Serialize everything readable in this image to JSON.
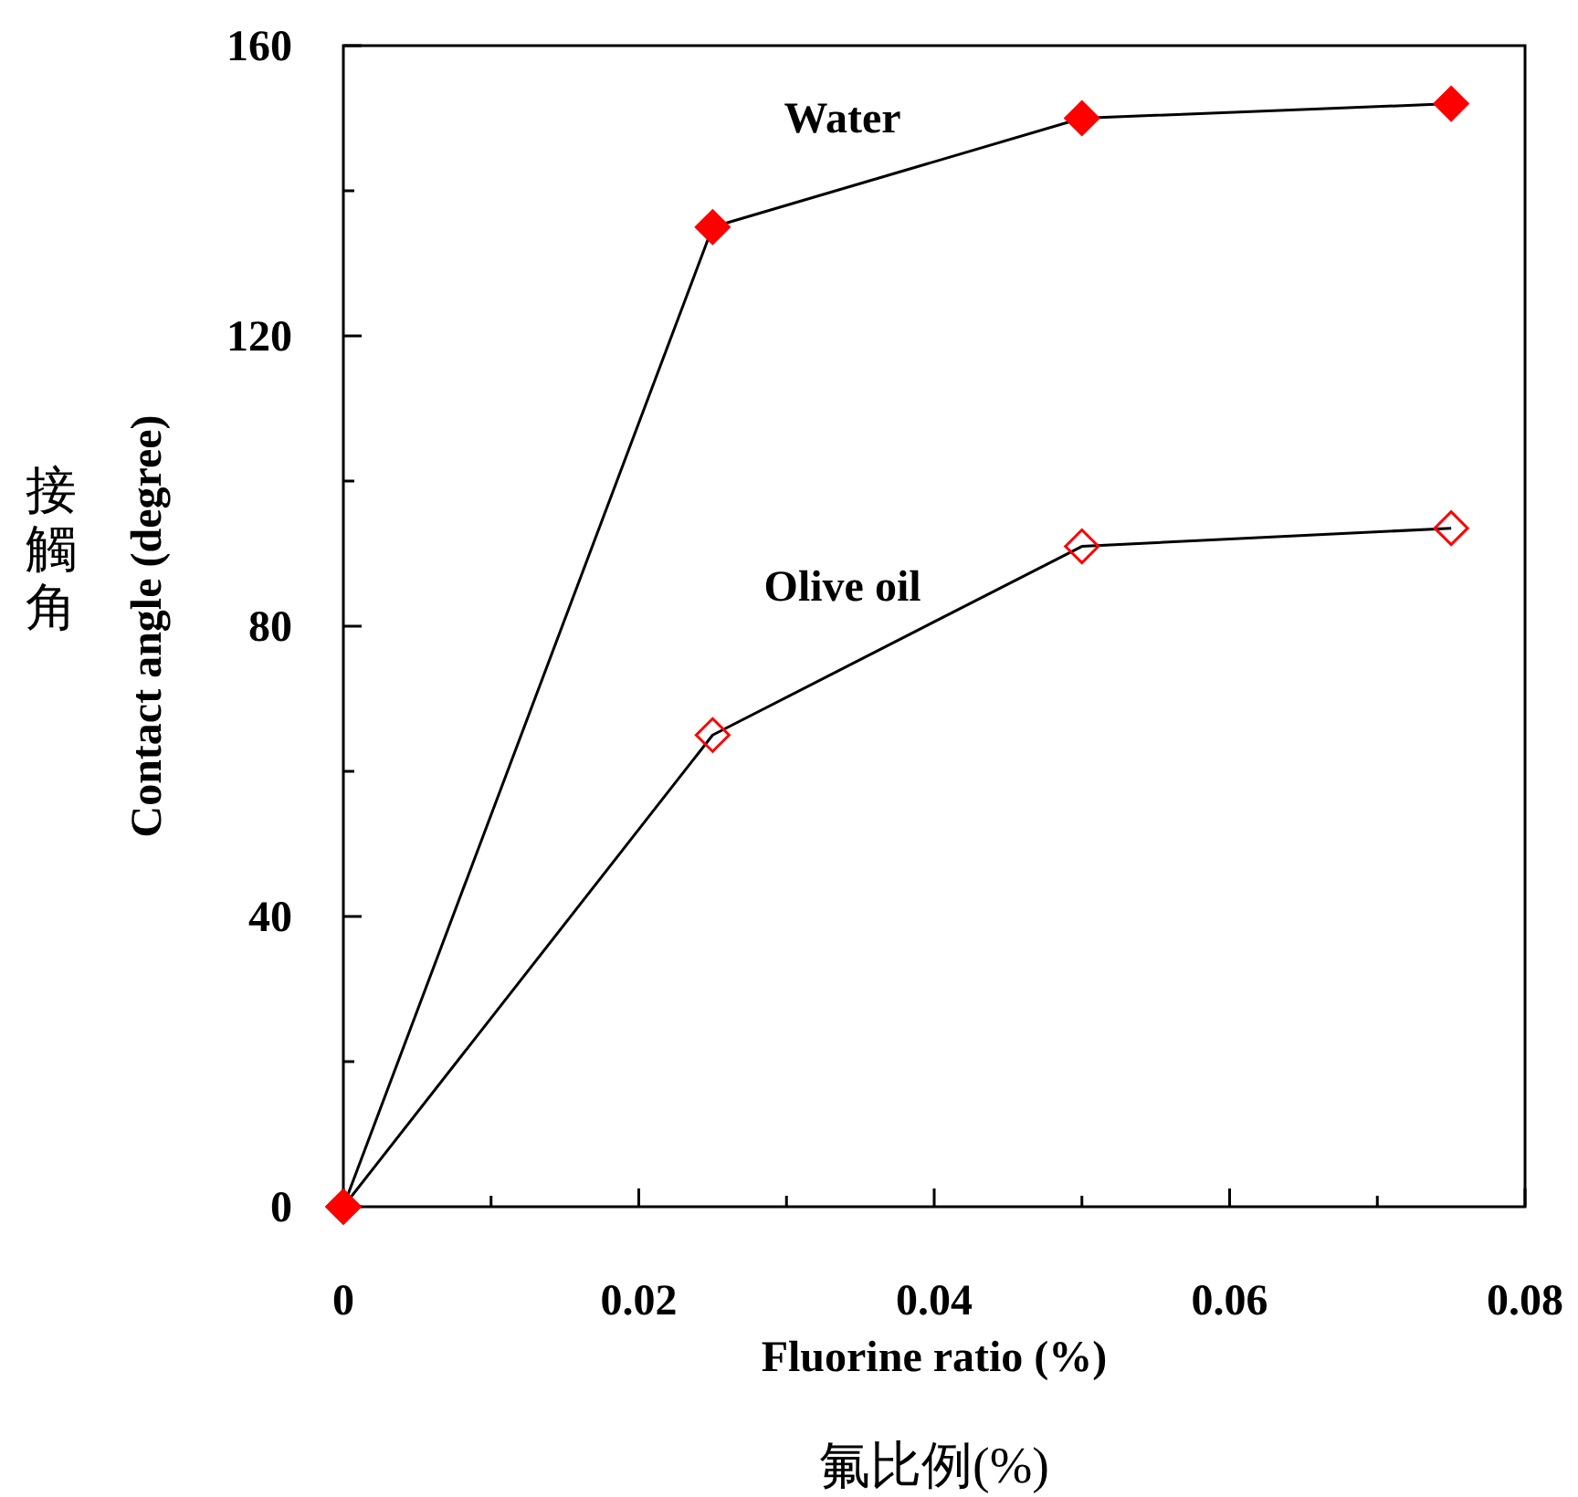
{
  "chart_data": {
    "type": "line",
    "xlabel": "Fluorine ratio (%)",
    "ylabel": "Contact angle (degree)",
    "annotations": [
      "接觸角",
      "氟比例(%)"
    ],
    "xlim": [
      0,
      0.08
    ],
    "xticks": [
      0,
      0.02,
      0.04,
      0.06,
      0.08
    ],
    "ylim": [
      0,
      160
    ],
    "yticks": [
      0,
      40,
      80,
      120,
      160
    ],
    "marker": "diamond",
    "x": [
      0,
      0.025,
      0.05,
      0.075
    ],
    "series": [
      {
        "name": "Water",
        "color": "#ff0000",
        "values": [
          0,
          135,
          150,
          152
        ]
      },
      {
        "name": "Olive oil",
        "color": "#ff0000",
        "values": [
          0,
          65,
          91,
          93.5
        ]
      }
    ]
  }
}
